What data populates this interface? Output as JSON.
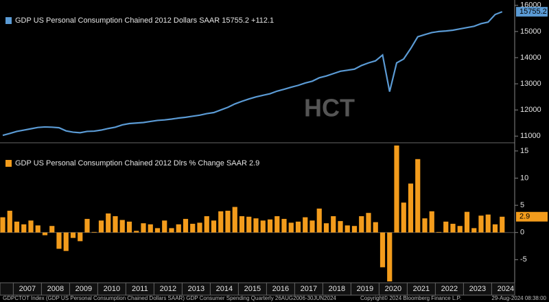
{
  "x_labels": [
    "2007",
    "2008",
    "2009",
    "2010",
    "2011",
    "2012",
    "2013",
    "2014",
    "2015",
    "2016",
    "2017",
    "2018",
    "2019",
    "2020",
    "2021",
    "2022",
    "2023",
    "2024"
  ],
  "watermark": "HCT",
  "footer": [
    "GDPCTOT Index (GDP US Personal Consumption Chained Dollars SAAR) GDP Consumer Spending  Quarterly 26AUG2006-30JUN2024",
    "Copyright© 2024 Bloomberg Finance L.P.",
    "29-Aug-2024 08:38:00"
  ],
  "chart_data": [
    {
      "type": "line",
      "legend": "GDP US Personal Consumption Chained 2012 Dollars SAAR  15755.2  +112.1",
      "color": "#5b9bd5",
      "last_label": "15755.2",
      "values": [
        11030,
        11100,
        11180,
        11230,
        11280,
        11330,
        11350,
        11340,
        11320,
        11200,
        11150,
        11130,
        11180,
        11190,
        11230,
        11290,
        11340,
        11430,
        11480,
        11500,
        11520,
        11560,
        11600,
        11620,
        11650,
        11690,
        11720,
        11760,
        11800,
        11860,
        11900,
        12000,
        12100,
        12230,
        12330,
        12420,
        12500,
        12560,
        12620,
        12720,
        12790,
        12870,
        12940,
        13030,
        13100,
        13230,
        13300,
        13390,
        13480,
        13520,
        13560,
        13700,
        13800,
        13880,
        14100,
        12700,
        13800,
        13950,
        14350,
        14800,
        14880,
        14960,
        15000,
        15020,
        15050,
        15100,
        15150,
        15200,
        15300,
        15360,
        15650,
        15755.2
      ],
      "ylim": [
        10850,
        16100
      ],
      "yticks": [
        11000,
        12000,
        13000,
        14000,
        15000,
        16000
      ]
    },
    {
      "type": "bar",
      "legend": "GDP US Personal Consumption Chained 2012 Dlrs % Change SAAR 2.9",
      "color": "#f39c1c",
      "last_label": "2.9",
      "values": [
        2.8,
        4.0,
        2.0,
        1.5,
        2.2,
        1.3,
        -0.5,
        1.2,
        -3.0,
        -3.4,
        -1.0,
        -1.6,
        2.5,
        0.1,
        2.2,
        3.5,
        3.0,
        2.3,
        2.0,
        0.3,
        1.7,
        1.5,
        0.8,
        2.2,
        0.8,
        1.5,
        2.5,
        1.6,
        1.8,
        3.0,
        2.2,
        3.9,
        4.0,
        4.7,
        3.0,
        2.9,
        2.6,
        2.2,
        2.4,
        3.0,
        2.5,
        1.8,
        2.0,
        2.8,
        2.2,
        4.4,
        1.7,
        3.0,
        2.1,
        1.3,
        1.2,
        3.0,
        3.6,
        1.9,
        -6.4,
        -9.0,
        16.0,
        5.5,
        9.0,
        13.5,
        2.6,
        3.9,
        0.1,
        2.0,
        1.6,
        1.2,
        3.8,
        0.8,
        3.1,
        3.3,
        1.5,
        2.9
      ],
      "ylim": [
        -9,
        16
      ],
      "yticks": [
        -5,
        0,
        5,
        10,
        15
      ]
    }
  ]
}
